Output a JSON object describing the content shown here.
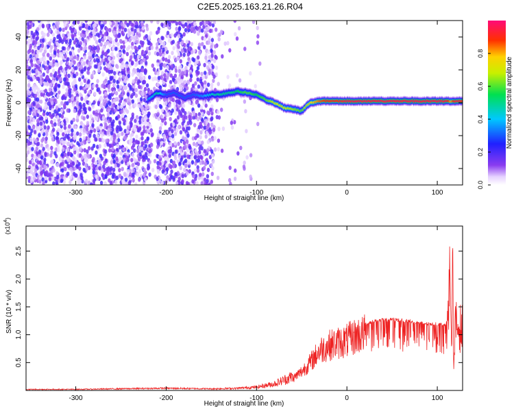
{
  "title": "C2E5.2025.163.21.26.R04",
  "colors": {
    "snr_line": "#ee2222",
    "ridge": "#ff0000",
    "background": "#ffffff"
  },
  "colorbar": {
    "label": "Normalized spectral amplitude",
    "ticks": [
      {
        "value": 0.0,
        "label": "0.0"
      },
      {
        "value": 0.2,
        "label": "0.2"
      },
      {
        "value": 0.4,
        "label": "0.4"
      },
      {
        "value": 0.6,
        "label": "0.6"
      },
      {
        "value": 0.8,
        "label": "0.8"
      }
    ],
    "range": [
      0,
      1
    ],
    "colormap": "rainbow-purple-to-magenta"
  },
  "chart_data": [
    {
      "type": "heatmap",
      "title": "C2E5.2025.163.21.26.R04",
      "xlabel": "Height of straight line (km)",
      "ylabel": "Frequency (Hz)",
      "xlim": [
        -355,
        128
      ],
      "ylim": [
        -50,
        50
      ],
      "xticks": [
        {
          "value": -300,
          "label": "-300"
        },
        {
          "value": -200,
          "label": "-200"
        },
        {
          "value": -100,
          "label": "-100"
        },
        {
          "value": 0,
          "label": "0"
        },
        {
          "value": 100,
          "label": "100"
        }
      ],
      "yticks": [
        {
          "value": -40,
          "label": "-40"
        },
        {
          "value": -20,
          "label": "-20"
        },
        {
          "value": 0,
          "label": "0"
        },
        {
          "value": 20,
          "label": "20"
        },
        {
          "value": 40,
          "label": "40"
        }
      ],
      "ridge": {
        "x": [
          -220,
          -210,
          -200,
          -190,
          -180,
          -170,
          -160,
          -150,
          -140,
          -130,
          -120,
          -110,
          -100,
          -90,
          -80,
          -70,
          -60,
          -50,
          -45,
          -40,
          -30,
          -20,
          -10,
          0,
          20,
          40,
          60,
          80,
          100,
          110,
          115,
          120,
          128
        ],
        "y": [
          2,
          6,
          5,
          6,
          3,
          5,
          4,
          5,
          5,
          6,
          7,
          6,
          5,
          2,
          0,
          -3,
          -4,
          -5,
          -2,
          0,
          1,
          1,
          1,
          1,
          1,
          1,
          1,
          1,
          1,
          1,
          1,
          1,
          1
        ],
        "amplitude": [
          0.35,
          0.5,
          0.3,
          0.3,
          0.3,
          0.3,
          0.35,
          0.45,
          0.5,
          0.5,
          0.55,
          0.6,
          0.55,
          0.6,
          0.7,
          0.7,
          0.65,
          0.6,
          0.7,
          0.75,
          0.85,
          0.9,
          0.9,
          0.95,
          0.95,
          0.95,
          0.95,
          0.95,
          0.95,
          0.95,
          0.8,
          0.95,
          0.9
        ]
      }
    },
    {
      "type": "line",
      "xlabel": "Height of straight line (km)",
      "ylabel": "SNR (10 * v/v)",
      "y_multiplier": "(x10",
      "y_multiplier_exp": "4",
      "xlim": [
        -355,
        128
      ],
      "ylim": [
        0,
        2.95
      ],
      "xticks": [
        {
          "value": -300,
          "label": "-300"
        },
        {
          "value": -200,
          "label": "-200"
        },
        {
          "value": -100,
          "label": "-100"
        },
        {
          "value": 0,
          "label": "0"
        },
        {
          "value": 100,
          "label": "100"
        }
      ],
      "yticks": [
        {
          "value": 0.5,
          "label": "0.5"
        },
        {
          "value": 1.0,
          "label": "1.0"
        },
        {
          "value": 1.5,
          "label": "1.5"
        },
        {
          "value": 2.0,
          "label": "2.0"
        },
        {
          "value": 2.5,
          "label": "2.5"
        }
      ],
      "series": [
        {
          "x": [
            -355,
            -300,
            -250,
            -200,
            -150,
            -120,
            -100,
            -80,
            -60,
            -50,
            -40,
            -30,
            -20,
            -10,
            0,
            10,
            20,
            30,
            40,
            50,
            60,
            70,
            80,
            90,
            100,
            110,
            114,
            116,
            117,
            118,
            120,
            128
          ],
          "y": [
            0.02,
            0.02,
            0.03,
            0.04,
            0.03,
            0.04,
            0.06,
            0.12,
            0.25,
            0.4,
            0.6,
            0.85,
            0.95,
            1.0,
            1.05,
            1.15,
            1.2,
            1.25,
            1.27,
            1.28,
            1.27,
            1.25,
            1.22,
            1.2,
            1.2,
            1.18,
            2.15,
            0.6,
            2.95,
            0.3,
            1.15,
            1.1
          ]
        }
      ]
    }
  ]
}
